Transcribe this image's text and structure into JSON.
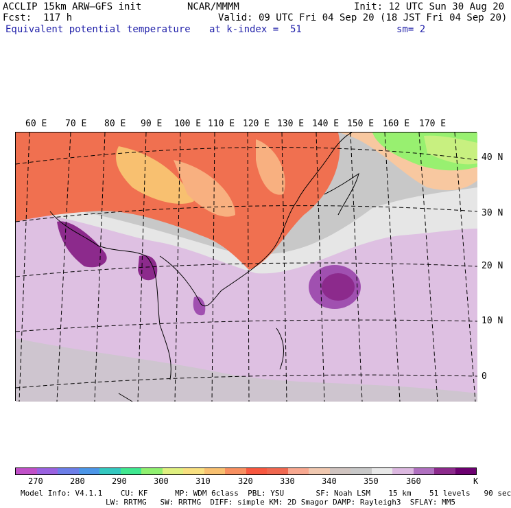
{
  "header": {
    "model_line": "ACCLIP 15km ARW–GFS init",
    "forecast": "Fcst:  117 h",
    "center": "NCAR/MMMM",
    "init": "Init: 12 UTC Sun 30 Aug 20",
    "valid": "Valid: 09 UTC Fri 04 Sep 20 (18 JST Fri 04 Sep 20)",
    "variable": "Equivalent potential temperature",
    "level": "at k-index =  51",
    "smoothing": "sm= 2"
  },
  "longitude_labels": [
    "60 E",
    "70 E",
    "80 E",
    "90 E",
    "100 E",
    "110 E",
    "120 E",
    "130 E",
    "140 E",
    "150 E",
    "160 E",
    "170 E"
  ],
  "latitude_labels": [
    "40 N",
    "30 N",
    "20 N",
    "10 N",
    "0"
  ],
  "colorbar": {
    "colors": [
      "#c050c8",
      "#9a62e0",
      "#6c7ee8",
      "#4c96e8",
      "#34c8c0",
      "#40e890",
      "#90f070",
      "#e0f080",
      "#f8e080",
      "#f8c070",
      "#f89060",
      "#f85840",
      "#f06850",
      "#f8a890",
      "#f0c8b0",
      "#d0c4c0",
      "#c8c8c8",
      "#e8e8e8",
      "#dcb8e0",
      "#b070c0",
      "#8c2a8c",
      "#6c0070"
    ],
    "tick_labels": [
      "270",
      "280",
      "290",
      "300",
      "310",
      "320",
      "330",
      "340",
      "350",
      "360"
    ],
    "unit": "K"
  },
  "footer": {
    "line1": "Model Info: V4.1.1    CU: KF      MP: WDM 6class  PBL: YSU       SF: Noah LSM    15 km    51 levels   90 sec",
    "line2": "LW: RRTMG   SW: RRTMG  DIFF: simple KM: 2D Smagor DAMP: Rayleigh3  SFLAY: MM5"
  }
}
